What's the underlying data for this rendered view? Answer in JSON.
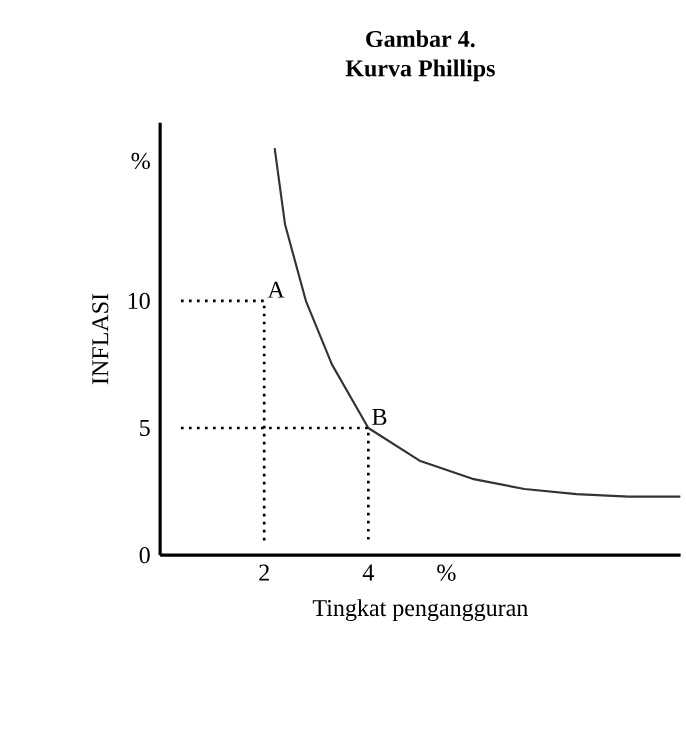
{
  "chart_data": {
    "type": "line",
    "title": "Gambar 4.",
    "subtitle": "Kurva Phillips",
    "xlabel": "Tingkat pengangguran",
    "ylabel": "INFLASI",
    "xlim": [
      0,
      10
    ],
    "ylim": [
      0,
      17
    ],
    "xticks": [
      2,
      4,
      {
        "value": 5.5,
        "label": "%"
      }
    ],
    "yticks": [
      0,
      5,
      10,
      {
        "value": 15.5,
        "label": "%"
      }
    ],
    "series": [
      {
        "color": "#333333",
        "line_style": "solid",
        "x": [
          2.2,
          2.4,
          2.8,
          3.3,
          4,
          5,
          6,
          7,
          8,
          9,
          10
        ],
        "values": [
          16,
          13,
          10,
          7.5,
          5,
          3.7,
          3,
          2.6,
          2.4,
          2.3,
          2.3
        ]
      },
      {
        "color": "#000000",
        "line_style": "dotted",
        "x": [
          0.4,
          2,
          2
        ],
        "values": [
          10,
          10,
          0.5
        ]
      },
      {
        "color": "#000000",
        "line_style": "dotted",
        "x": [
          0.4,
          4,
          4
        ],
        "values": [
          5,
          5,
          0.5
        ]
      }
    ],
    "annotations": [
      {
        "text": "A",
        "x": 2,
        "y": 10
      },
      {
        "text": "B",
        "x": 4,
        "y": 5
      }
    ],
    "grid": false,
    "marker": "none"
  }
}
